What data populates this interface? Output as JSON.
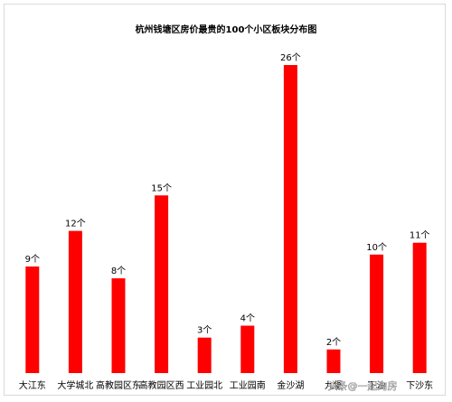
{
  "chart_data": {
    "type": "bar",
    "title": "杭州钱塘区房价最贵的100个小区板块分布图",
    "categories": [
      "大江东",
      "大学城北",
      "高教园区东",
      "高教园区西",
      "工业园北",
      "工业园南",
      "金沙湖",
      "九堡",
      "下沙",
      "下沙东"
    ],
    "values": [
      9,
      12,
      8,
      15,
      3,
      4,
      26,
      2,
      10,
      11
    ],
    "data_labels": [
      "9个",
      "12个",
      "8个",
      "15个",
      "3个",
      "4个",
      "26个",
      "2个",
      "10个",
      "11个"
    ],
    "xlabel": "",
    "ylabel": "",
    "ylim": [
      0,
      26
    ],
    "bar_color": "#ff0000",
    "grid": false,
    "legend": false
  },
  "watermark": "头条@一起淘房"
}
